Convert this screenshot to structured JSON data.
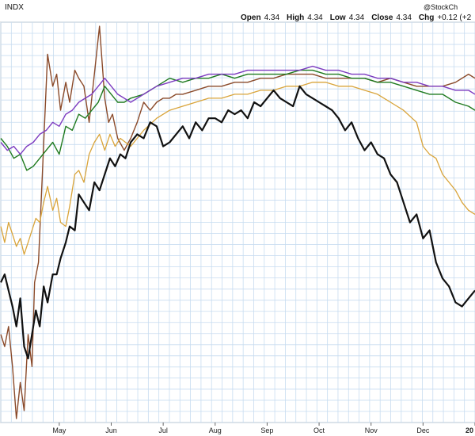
{
  "header": {
    "symbol": "INDX",
    "watermark": "@StockCh",
    "ohlc": [
      {
        "label": "Open",
        "value": "4.34"
      },
      {
        "label": "High",
        "value": "4.34"
      },
      {
        "label": "Low",
        "value": "4.34"
      },
      {
        "label": "Close",
        "value": "4.34"
      },
      {
        "label": "Chg",
        "value": "+0.12 (+2"
      }
    ]
  },
  "colors": {
    "background": "#ffffff",
    "plot_background": "#ffffff",
    "grid": "#c7dcf0",
    "frame": "#888888"
  },
  "chart_data": {
    "type": "line",
    "title": "",
    "xlabel": "",
    "ylabel": "",
    "grid": true,
    "x_ticks": [
      {
        "label": "May",
        "x": 4.5
      },
      {
        "label": "Jun",
        "x": 8.5
      },
      {
        "label": "Jul",
        "x": 12.5
      },
      {
        "label": "Aug",
        "x": 16.5
      },
      {
        "label": "Sep",
        "x": 20.5
      },
      {
        "label": "Oct",
        "x": 24.5
      },
      {
        "label": "Nov",
        "x": 28.5
      },
      {
        "label": "Dec",
        "x": 32.5
      },
      {
        "label": "20",
        "x": 36.5
      }
    ],
    "xlim": [
      0,
      36.5
    ],
    "ylim": [
      0,
      100
    ],
    "series": [
      {
        "color": "#8a4a2a",
        "width": 1.4,
        "x": [
          0,
          0.3,
          0.6,
          0.9,
          1.2,
          1.5,
          1.8,
          2.1,
          2.4,
          2.6,
          2.9,
          3.2,
          3.6,
          4.0,
          4.3,
          4.6,
          5.0,
          5.3,
          5.7,
          6.0,
          6.4,
          6.8,
          7.2,
          7.6,
          8.0,
          8.3,
          8.6,
          9.0,
          9.5,
          10.0,
          10.5,
          11.0,
          11.5,
          12.0,
          12.5,
          13.0,
          13.5,
          14.0,
          15,
          16,
          17,
          18,
          19,
          20,
          21,
          22,
          23,
          24,
          25,
          26,
          27,
          28,
          29,
          30,
          31,
          32,
          33,
          34,
          35,
          36,
          36.5
        ],
        "y": [
          22,
          19,
          24,
          14,
          1,
          10,
          3,
          22,
          14,
          35,
          40,
          62,
          92,
          84,
          87,
          78,
          85,
          80,
          88,
          86,
          84,
          75,
          87,
          99,
          81,
          75,
          77,
          71,
          68,
          71,
          75,
          80,
          78,
          80,
          81,
          81,
          82,
          82,
          83,
          84,
          84,
          85,
          85,
          86,
          86,
          87,
          87,
          87,
          86,
          86,
          86,
          86,
          85,
          86,
          85,
          84,
          84,
          84,
          85,
          87,
          86
        ]
      },
      {
        "color": "#1f7a1f",
        "width": 1.4,
        "x": [
          0,
          0.5,
          1.0,
          1.5,
          2.0,
          2.5,
          3.0,
          3.5,
          4.0,
          4.5,
          5.0,
          5.5,
          6.0,
          6.5,
          7.0,
          7.5,
          8.0,
          8.5,
          9.0,
          9.5,
          10.0,
          11,
          12,
          13,
          14,
          15,
          16,
          17,
          18,
          19,
          20,
          21,
          22,
          23,
          24,
          25,
          26,
          27,
          28,
          29,
          30,
          31,
          32,
          33,
          34,
          35,
          36,
          36.5
        ],
        "y": [
          71,
          69,
          66,
          67,
          63,
          64,
          66,
          68,
          70,
          67,
          74,
          73,
          77,
          76,
          78,
          80,
          84,
          82,
          80,
          80,
          81,
          82,
          84,
          86,
          85,
          86,
          86,
          87,
          86,
          87,
          87,
          87,
          87,
          88,
          88,
          87,
          87,
          86,
          86,
          85,
          85,
          84,
          83,
          82,
          82,
          80,
          79,
          78
        ]
      },
      {
        "color": "#7d3cc0",
        "width": 1.4,
        "x": [
          0,
          0.5,
          1.0,
          1.5,
          2.0,
          2.5,
          3.0,
          3.5,
          4.0,
          4.5,
          5.0,
          5.5,
          6.0,
          6.5,
          7.0,
          7.5,
          8.0,
          8.5,
          9.0,
          9.5,
          10.0,
          11,
          12,
          13,
          14,
          15,
          16,
          17,
          18,
          19,
          20,
          21,
          22,
          23,
          24,
          25,
          26,
          27,
          28,
          29,
          30,
          31,
          32,
          33,
          34,
          35,
          36,
          36.5
        ],
        "y": [
          70,
          68,
          69,
          67,
          69,
          70,
          72,
          73,
          75,
          74,
          77,
          78,
          80,
          81,
          82,
          84,
          86,
          84,
          82,
          81,
          80,
          82,
          84,
          85,
          86,
          86,
          87,
          87,
          87,
          88,
          88,
          88,
          88,
          88,
          89,
          88,
          88,
          87,
          87,
          86,
          86,
          85,
          85,
          84,
          84,
          83,
          83,
          82
        ]
      },
      {
        "color": "#d9a43a",
        "width": 1.3,
        "x": [
          0,
          0.3,
          0.6,
          0.9,
          1.2,
          1.5,
          1.8,
          2.1,
          2.4,
          2.7,
          3.0,
          3.3,
          3.6,
          4.0,
          4.3,
          4.6,
          5.0,
          5.3,
          5.7,
          6.0,
          6.4,
          6.8,
          7.2,
          7.6,
          8.0,
          8.4,
          8.8,
          9.2,
          9.6,
          10.0,
          11,
          12,
          13,
          14,
          15,
          16,
          17,
          18,
          19,
          20,
          21,
          22,
          23,
          24,
          25,
          26,
          27,
          28,
          29,
          30,
          31,
          32,
          32.5,
          33,
          33.5,
          34,
          34.5,
          35,
          35.5,
          36,
          36.5
        ],
        "y": [
          49,
          45,
          50,
          47,
          44,
          46,
          42,
          45,
          48,
          51,
          50,
          55,
          59,
          53,
          56,
          50,
          49,
          54,
          62,
          63,
          60,
          67,
          70,
          72,
          68,
          72,
          69,
          71,
          70,
          69,
          73,
          76,
          78,
          79,
          80,
          81,
          81,
          82,
          82,
          83,
          83,
          84,
          84,
          85,
          85,
          84,
          84,
          83,
          82,
          80,
          78,
          75,
          69,
          67,
          66,
          62,
          60,
          58,
          55,
          53,
          52
        ]
      },
      {
        "color": "#111111",
        "width": 2.2,
        "x": [
          0,
          0.3,
          0.6,
          0.9,
          1.2,
          1.5,
          1.8,
          2.1,
          2.4,
          2.7,
          3.0,
          3.3,
          3.6,
          4.0,
          4.3,
          4.6,
          5.0,
          5.3,
          5.7,
          6.0,
          6.4,
          6.8,
          7.2,
          7.6,
          8.0,
          8.4,
          8.8,
          9.2,
          9.6,
          10.0,
          10.5,
          11.0,
          11.5,
          12.0,
          12.5,
          13.0,
          13.5,
          14.0,
          14.5,
          15.0,
          15.5,
          16.0,
          16.5,
          17.0,
          17.5,
          18.0,
          18.5,
          19.0,
          19.5,
          20.0,
          20.5,
          21.0,
          21.5,
          22.0,
          22.5,
          23.0,
          23.5,
          24.0,
          24.5,
          25.0,
          25.5,
          26.0,
          26.5,
          27.0,
          27.5,
          28.0,
          28.5,
          29.0,
          29.5,
          30.0,
          30.5,
          31.0,
          31.5,
          32.0,
          32.5,
          33.0,
          33.5,
          34.0,
          34.5,
          35.0,
          35.5,
          36.0,
          36.5
        ],
        "y": [
          35,
          37,
          33,
          29,
          24,
          31,
          19,
          16,
          22,
          28,
          24,
          34,
          30,
          37,
          37,
          41,
          45,
          49,
          48,
          57,
          55,
          53,
          60,
          58,
          62,
          66,
          64,
          67,
          66,
          70,
          72,
          71,
          75,
          74,
          69,
          70,
          72,
          74,
          71,
          75,
          73,
          76,
          76,
          75,
          78,
          77,
          78,
          76,
          80,
          79,
          81,
          83,
          81,
          80,
          79,
          84,
          82,
          81,
          80,
          79,
          78,
          76,
          73,
          75,
          71,
          68,
          70,
          67,
          66,
          62,
          60,
          55,
          50,
          52,
          46,
          48,
          40,
          36,
          34,
          30,
          29,
          31,
          33
        ]
      }
    ]
  }
}
